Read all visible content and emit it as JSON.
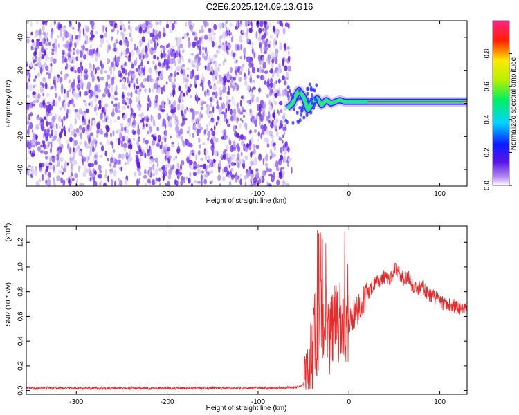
{
  "title": "C2E6.2025.124.09.13.G16",
  "chart_data": [
    {
      "type": "heatmap",
      "xlabel": "Height of straight line (km)",
      "ylabel": "Frequency (Hz)",
      "xlim": [
        -355,
        130
      ],
      "ylim": [
        -50,
        50
      ],
      "xticks": [
        -300,
        -200,
        -100,
        0,
        100
      ],
      "yticks": [
        -40,
        -20,
        0,
        20,
        40
      ],
      "noise_region_x": [
        -355,
        -65
      ],
      "signal_track": {
        "x": [
          -68,
          -62,
          -58,
          -55,
          -50,
          -45,
          -40,
          -35,
          -30,
          -25,
          -20,
          -15,
          -10,
          -5,
          0,
          10,
          25,
          50,
          75,
          90,
          100,
          115,
          130
        ],
        "y": [
          -3,
          0,
          5,
          8,
          4,
          -4,
          1,
          3,
          -1,
          2,
          0,
          1,
          2,
          1,
          1,
          1,
          1,
          1,
          1,
          1,
          1,
          1,
          1
        ]
      },
      "colorbar": {
        "label": "Normalized spectral amplitude",
        "ticks": [
          "0.0",
          "0.2",
          "0.4",
          "0.6",
          "0.8"
        ],
        "range": [
          0,
          1
        ]
      },
      "grid": false
    },
    {
      "type": "line",
      "xlabel": "Height of straight line (km)",
      "ylabel": "SNR (10 * v/v)",
      "multiplier_label": "(x10",
      "multiplier_exp": "4",
      "xlim": [
        -355,
        130
      ],
      "ylim": [
        -0.03,
        1.33
      ],
      "xticks": [
        -300,
        -200,
        -100,
        0,
        100
      ],
      "yticks": [
        "0.0",
        "0.2",
        "0.4",
        "0.6",
        "0.8",
        "1.0",
        "1.2"
      ],
      "series_color": "#e82a2a",
      "series": [
        {
          "x": [
            -355,
            -300,
            -250,
            -200,
            -150,
            -100,
            -70,
            -55,
            -48,
            -45,
            -42,
            -40,
            -38,
            -35,
            -32,
            -30,
            -28,
            -25,
            -22,
            -20,
            -18,
            -15,
            -12,
            -10,
            -8,
            -5,
            -2,
            0,
            3,
            6,
            10,
            15,
            20,
            25,
            30,
            35,
            40,
            45,
            50,
            55,
            60,
            65,
            70,
            75,
            80,
            85,
            90,
            95,
            100,
            105,
            110,
            115,
            120,
            125,
            130
          ],
          "y": [
            0.02,
            0.02,
            0.02,
            0.02,
            0.02,
            0.02,
            0.02,
            0.03,
            0.06,
            0.15,
            0.35,
            0.2,
            0.5,
            0.3,
            0.55,
            0.65,
            0.4,
            0.6,
            0.35,
            0.55,
            0.45,
            0.6,
            0.5,
            0.6,
            0.45,
            0.55,
            0.5,
            0.5,
            0.6,
            0.62,
            0.65,
            0.72,
            0.78,
            0.82,
            0.88,
            0.9,
            0.92,
            0.9,
            0.98,
            0.95,
            0.9,
            0.92,
            0.85,
            0.82,
            0.85,
            0.8,
            0.77,
            0.75,
            0.73,
            0.7,
            0.7,
            0.68,
            0.66,
            0.66,
            0.64
          ]
        }
      ],
      "grid": false
    }
  ]
}
